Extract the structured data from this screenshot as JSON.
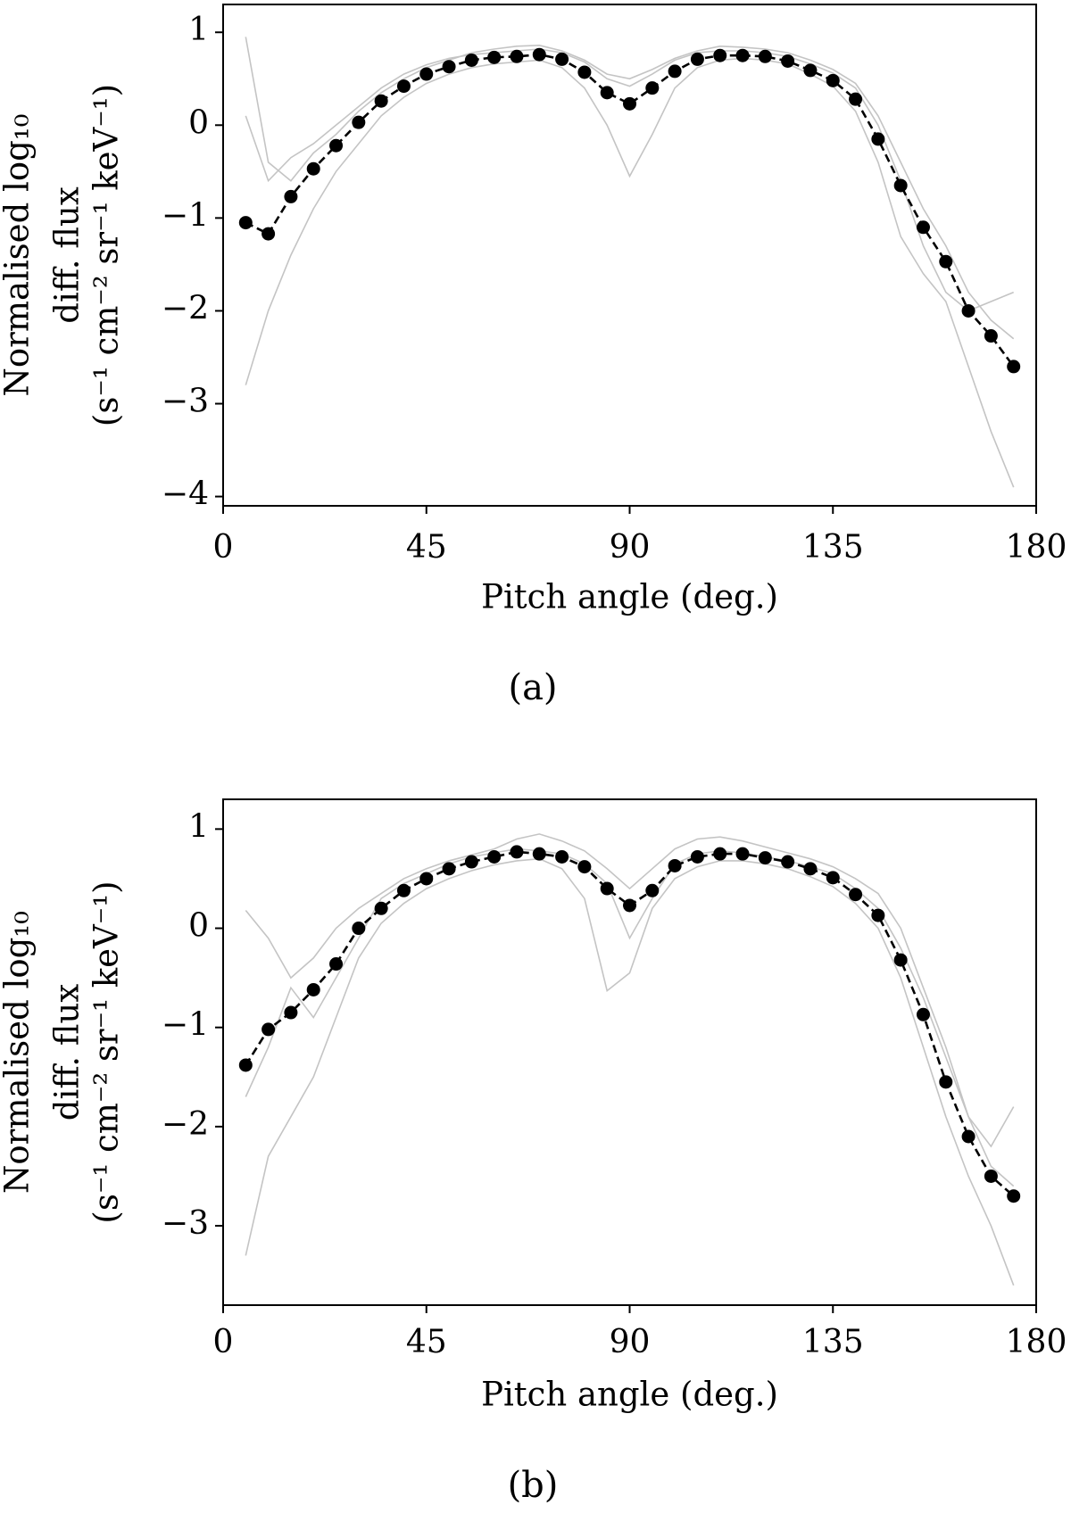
{
  "chart_data": [
    {
      "type": "line",
      "xlabel": "Pitch angle (deg.)",
      "ylabel": [
        "Normalised log₁₀",
        "diff. flux",
        "(s⁻¹ cm⁻² sr⁻¹ keV⁻¹)"
      ],
      "caption": "(a)",
      "x": [
        5,
        10,
        15,
        20,
        25,
        30,
        35,
        40,
        45,
        50,
        55,
        60,
        65,
        70,
        75,
        80,
        85,
        90,
        95,
        100,
        105,
        110,
        115,
        120,
        125,
        130,
        135,
        140,
        145,
        150,
        155,
        160,
        165,
        170,
        175
      ],
      "xlim": [
        0,
        180
      ],
      "xticks": [
        0,
        45,
        90,
        135,
        180
      ],
      "ylim": [
        -4.1,
        1.3
      ],
      "yticks": [
        {
          "value": -4,
          "label": "−4"
        },
        {
          "value": -3,
          "label": "−3"
        },
        {
          "value": -2,
          "label": "−2"
        },
        {
          "value": -1,
          "label": "−1"
        },
        0,
        1
      ],
      "series": [
        {
          "color": "#c4c4c4",
          "linestyle": "solid",
          "values": [
            0.95,
            -0.4,
            -0.6,
            -0.3,
            -0.1,
            0.15,
            0.35,
            0.5,
            0.62,
            0.7,
            0.78,
            0.82,
            0.85,
            0.86,
            0.8,
            0.7,
            0.55,
            0.5,
            0.6,
            0.72,
            0.8,
            0.85,
            0.84,
            0.82,
            0.78,
            0.7,
            0.6,
            0.45,
            0.1,
            -0.4,
            -0.9,
            -1.3,
            -1.8,
            -2.1,
            -2.3
          ]
        },
        {
          "color": "#c4c4c4",
          "linestyle": "solid",
          "values": [
            -2.8,
            -2.0,
            -1.4,
            -0.9,
            -0.5,
            -0.2,
            0.1,
            0.3,
            0.45,
            0.55,
            0.62,
            0.66,
            0.68,
            0.7,
            0.62,
            0.4,
            0.0,
            -0.55,
            -0.1,
            0.4,
            0.62,
            0.7,
            0.72,
            0.7,
            0.66,
            0.55,
            0.42,
            0.15,
            -0.4,
            -1.2,
            -1.6,
            -1.9,
            -2.6,
            -3.3,
            -3.9
          ]
        },
        {
          "color": "#c4c4c4",
          "linestyle": "solid",
          "values": [
            0.1,
            -0.6,
            -0.35,
            -0.2,
            0.0,
            0.2,
            0.4,
            0.55,
            0.65,
            0.72,
            0.76,
            0.78,
            0.8,
            0.82,
            0.78,
            0.68,
            0.5,
            0.42,
            0.55,
            0.7,
            0.78,
            0.8,
            0.8,
            0.78,
            0.74,
            0.66,
            0.56,
            0.4,
            0.0,
            -0.6,
            -1.3,
            -1.8,
            -2.0,
            -1.9,
            -1.8
          ]
        },
        {
          "color": "#000000",
          "linestyle": "dashed",
          "marker": "circle",
          "values": [
            -1.05,
            -1.17,
            -0.77,
            -0.47,
            -0.22,
            0.03,
            0.26,
            0.42,
            0.55,
            0.63,
            0.7,
            0.73,
            0.74,
            0.76,
            0.71,
            0.57,
            0.35,
            0.23,
            0.4,
            0.58,
            0.71,
            0.75,
            0.75,
            0.74,
            0.69,
            0.59,
            0.48,
            0.28,
            -0.15,
            -0.65,
            -1.1,
            -1.47,
            -2.0,
            -2.27,
            -2.6
          ]
        }
      ]
    },
    {
      "type": "line",
      "xlabel": "Pitch angle (deg.)",
      "ylabel": [
        "Normalised log₁₀",
        "diff. flux",
        "(s⁻¹ cm⁻² sr⁻¹ keV⁻¹)"
      ],
      "caption": "(b)",
      "x": [
        5,
        10,
        15,
        20,
        25,
        30,
        35,
        40,
        45,
        50,
        55,
        60,
        65,
        70,
        75,
        80,
        85,
        90,
        95,
        100,
        105,
        110,
        115,
        120,
        125,
        130,
        135,
        140,
        145,
        150,
        155,
        160,
        165,
        170,
        175
      ],
      "xlim": [
        0,
        180
      ],
      "xticks": [
        0,
        45,
        90,
        135,
        180
      ],
      "ylim": [
        -3.8,
        1.3
      ],
      "yticks": [
        {
          "value": -3,
          "label": "−3"
        },
        {
          "value": -2,
          "label": "−2"
        },
        {
          "value": -1,
          "label": "−1"
        },
        0,
        1
      ],
      "series": [
        {
          "color": "#c4c4c4",
          "linestyle": "solid",
          "values": [
            0.18,
            -0.1,
            -0.5,
            -0.3,
            0.0,
            0.2,
            0.35,
            0.5,
            0.6,
            0.68,
            0.74,
            0.8,
            0.9,
            0.95,
            0.88,
            0.78,
            0.6,
            0.4,
            0.6,
            0.8,
            0.9,
            0.92,
            0.88,
            0.82,
            0.76,
            0.7,
            0.62,
            0.5,
            0.35,
            0.0,
            -0.6,
            -1.2,
            -1.9,
            -2.2,
            -1.8
          ]
        },
        {
          "color": "#c4c4c4",
          "linestyle": "solid",
          "values": [
            -3.3,
            -2.3,
            -1.9,
            -1.5,
            -0.9,
            -0.3,
            0.05,
            0.25,
            0.4,
            0.5,
            0.58,
            0.64,
            0.68,
            0.7,
            0.6,
            0.3,
            -0.63,
            -0.45,
            0.2,
            0.5,
            0.62,
            0.68,
            0.68,
            0.65,
            0.6,
            0.52,
            0.42,
            0.25,
            0.0,
            -0.5,
            -1.2,
            -1.9,
            -2.5,
            -3.0,
            -3.6
          ]
        },
        {
          "color": "#c4c4c4",
          "linestyle": "solid",
          "values": [
            -1.7,
            -1.2,
            -0.6,
            -0.9,
            -0.5,
            -0.1,
            0.3,
            0.45,
            0.55,
            0.65,
            0.72,
            0.76,
            0.8,
            0.78,
            0.75,
            0.65,
            0.45,
            -0.1,
            0.3,
            0.65,
            0.75,
            0.78,
            0.76,
            0.72,
            0.68,
            0.62,
            0.55,
            0.4,
            0.2,
            -0.2,
            -0.7,
            -1.3,
            -1.9,
            -2.4,
            -2.6
          ]
        },
        {
          "color": "#000000",
          "linestyle": "dashed",
          "marker": "circle",
          "values": [
            -1.38,
            -1.02,
            -0.85,
            -0.62,
            -0.36,
            0.0,
            0.2,
            0.38,
            0.5,
            0.6,
            0.67,
            0.72,
            0.77,
            0.75,
            0.72,
            0.62,
            0.4,
            0.23,
            0.38,
            0.63,
            0.72,
            0.75,
            0.75,
            0.71,
            0.67,
            0.6,
            0.51,
            0.34,
            0.13,
            -0.32,
            -0.87,
            -1.55,
            -2.1,
            -2.5,
            -2.7
          ]
        }
      ]
    }
  ]
}
